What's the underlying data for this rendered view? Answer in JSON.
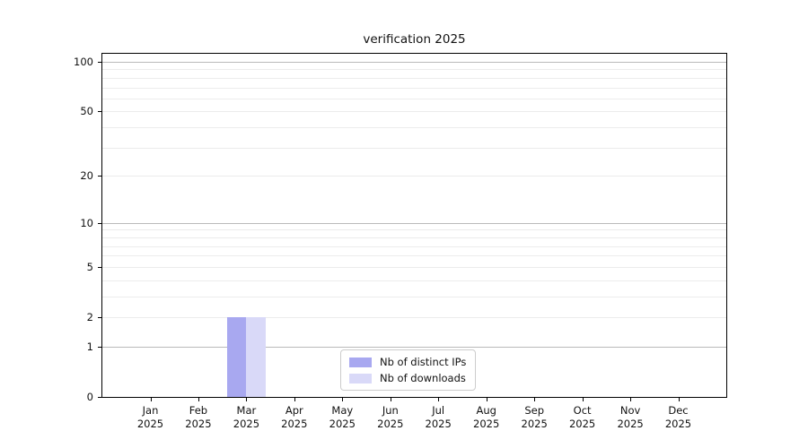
{
  "title": "verification 2025",
  "chart_data": {
    "type": "bar",
    "title": "verification 2025",
    "xlabel": "",
    "ylabel": "",
    "year": "2025",
    "months": [
      "Jan",
      "Feb",
      "Mar",
      "Apr",
      "May",
      "Jun",
      "Jul",
      "Aug",
      "Sep",
      "Oct",
      "Nov",
      "Dec"
    ],
    "categories": [
      "Jan 2025",
      "Feb 2025",
      "Mar 2025",
      "Apr 2025",
      "May 2025",
      "Jun 2025",
      "Jul 2025",
      "Aug 2025",
      "Sep 2025",
      "Oct 2025",
      "Nov 2025",
      "Dec 2025"
    ],
    "series": [
      {
        "name": "Nb of distinct IPs",
        "color": "#a8a8f0",
        "values": [
          0,
          0,
          2,
          0,
          0,
          0,
          0,
          0,
          0,
          0,
          0,
          0
        ]
      },
      {
        "name": "Nb of downloads",
        "color": "#d9d9f8",
        "values": [
          0,
          0,
          2,
          0,
          0,
          0,
          0,
          0,
          0,
          0,
          0,
          0
        ]
      }
    ],
    "y_scale": "log1p",
    "ylim": [
      0,
      100
    ],
    "y_ticks": [
      0,
      1,
      2,
      5,
      10,
      20,
      50,
      100
    ],
    "y_major_gridlines": [
      1,
      10,
      100
    ],
    "y_minor_gridlines": [
      2,
      3,
      4,
      5,
      6,
      7,
      8,
      9,
      20,
      30,
      40,
      50,
      60,
      70,
      80,
      90
    ],
    "grid": true,
    "legend_position": "lower center"
  },
  "colors": {
    "major_grid": "#b9b9b9",
    "minor_grid": "#ececec",
    "axis": "#000000",
    "background": "#ffffff"
  }
}
